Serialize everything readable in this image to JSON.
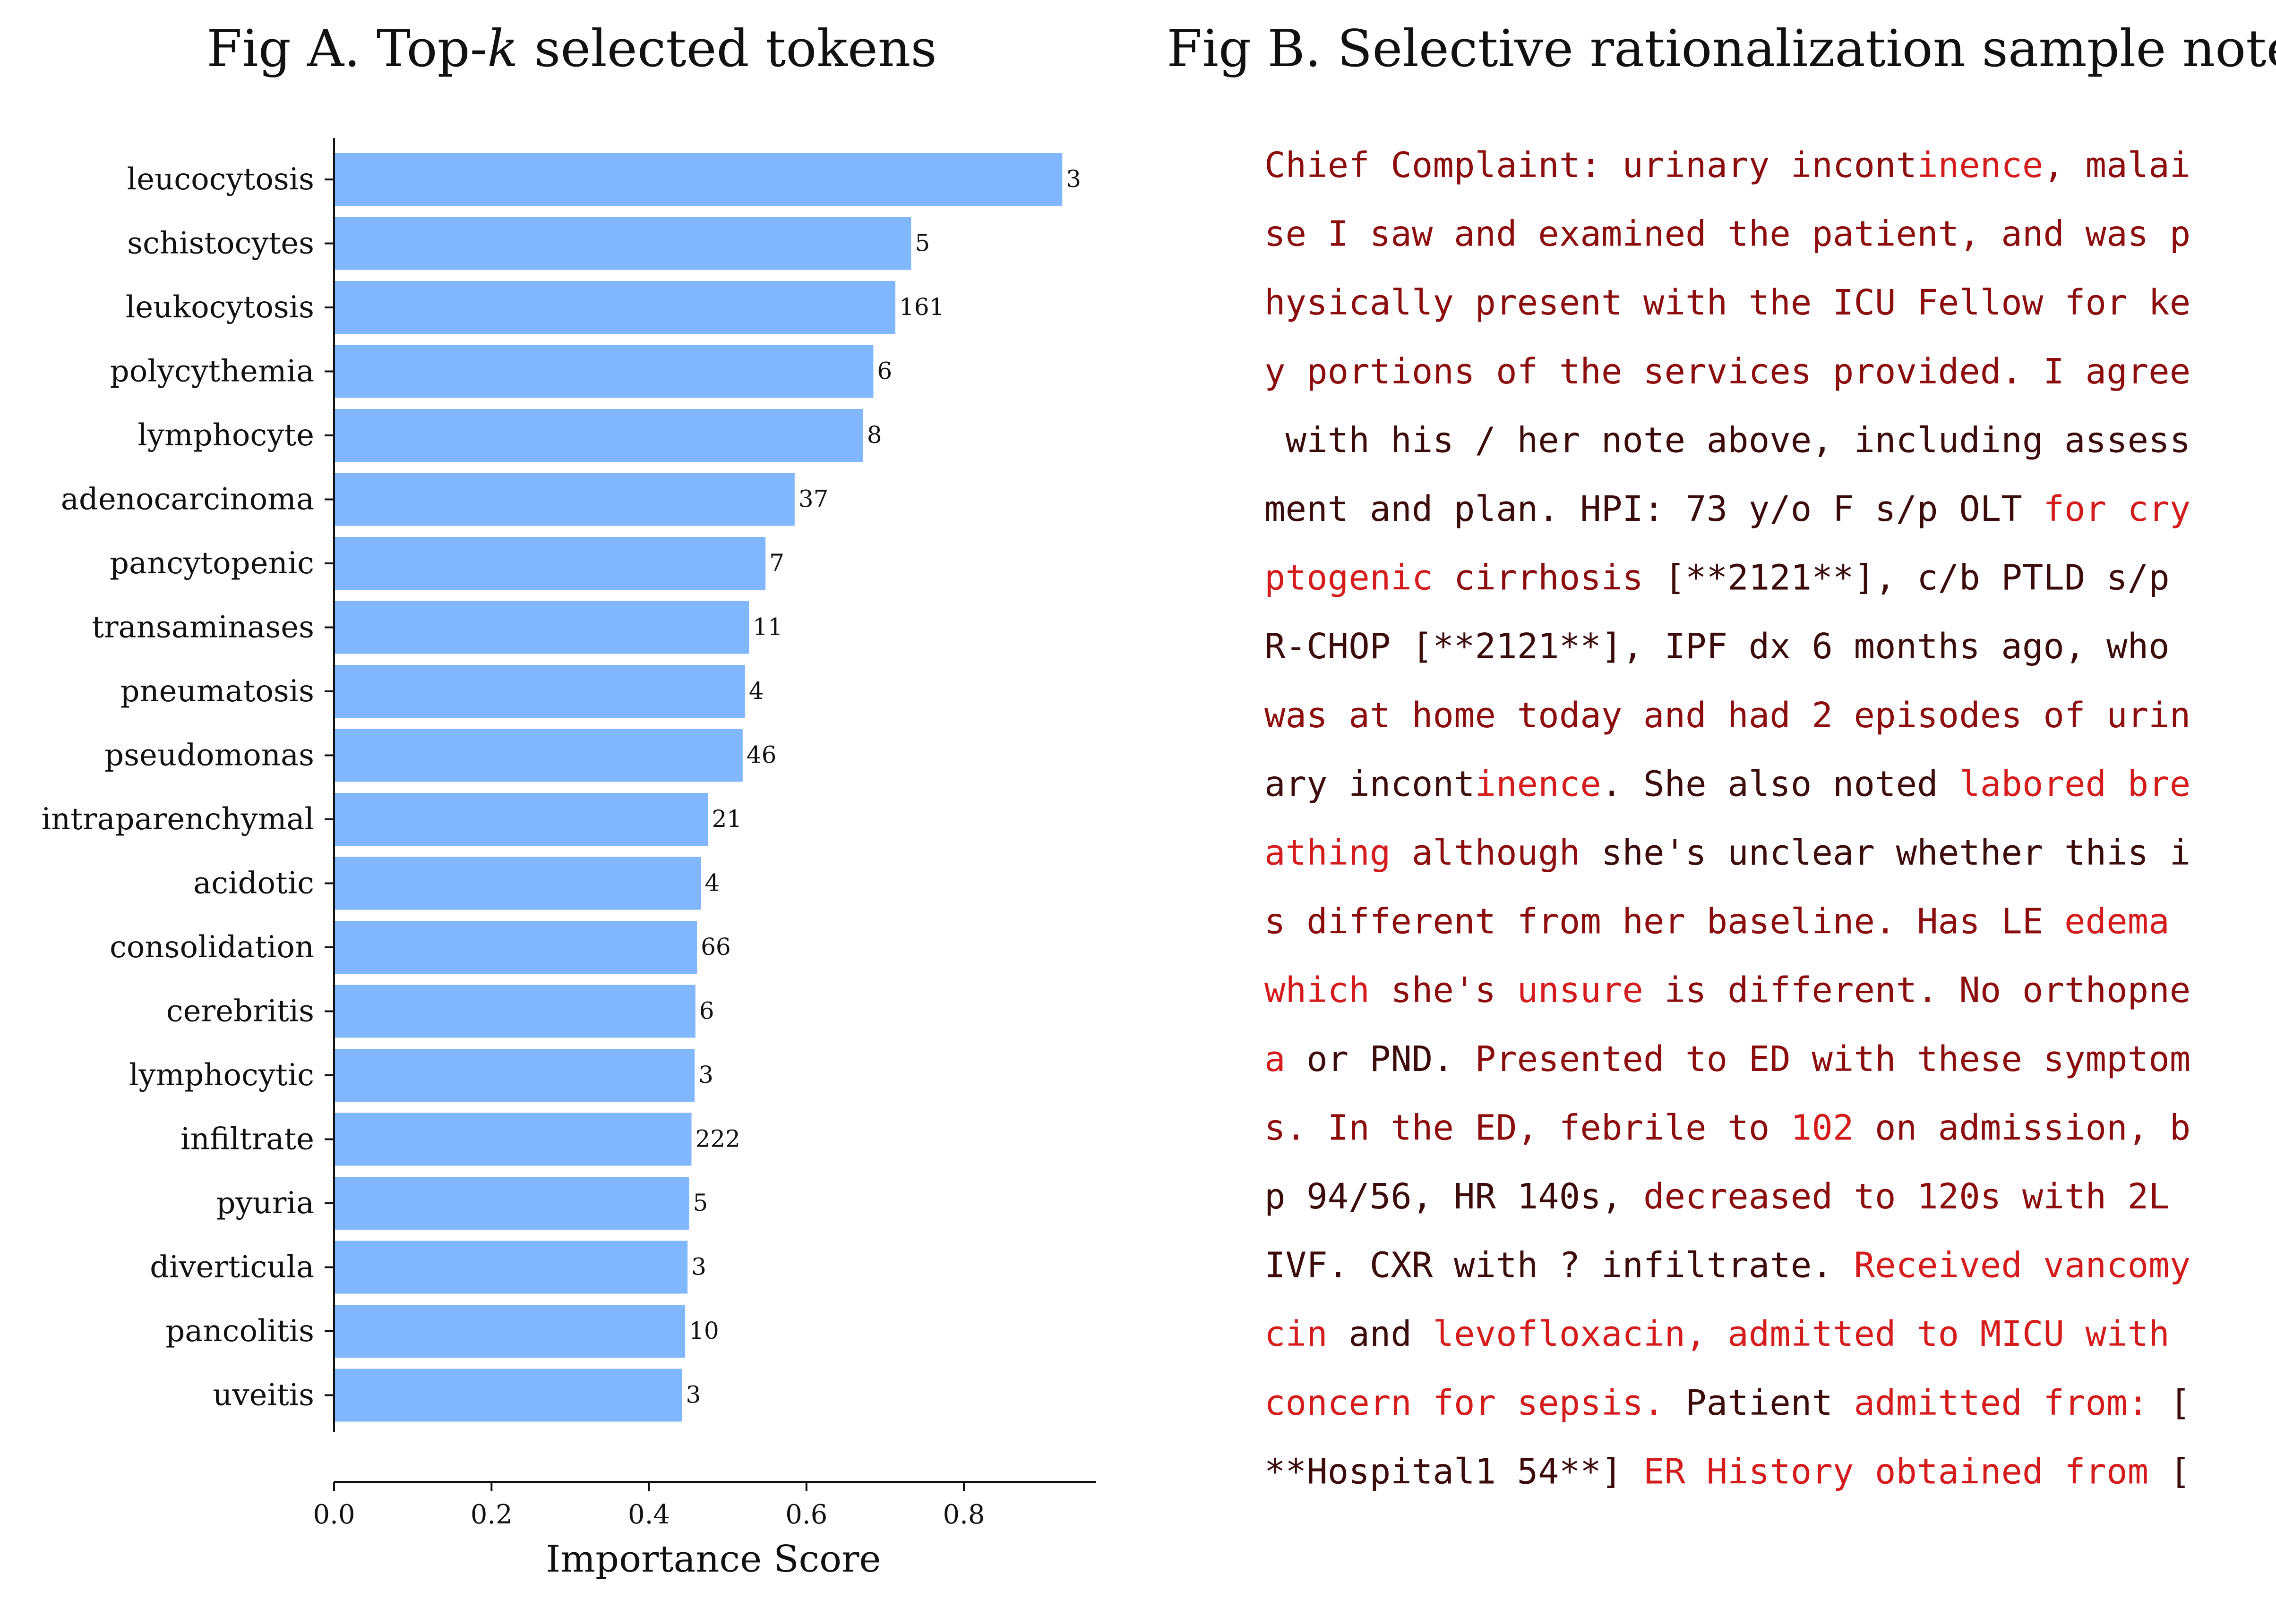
{
  "colors": {
    "bar": "#80b7fe",
    "axis": "#111111",
    "text": "#111111",
    "note_dark": "#3c0b0b",
    "note_mid": "#8c0d0d",
    "note_bright": "#d41c1c"
  },
  "chart_data": {
    "type": "bar",
    "orientation": "horizontal",
    "title_prefix": "Fig A. Top-",
    "title_var": "k",
    "title_suffix": " selected tokens",
    "xlabel": "Importance Score",
    "ylabel": "",
    "xlim": [
      0,
      0.97
    ],
    "xticks": [
      0.0,
      0.2,
      0.4,
      0.6,
      0.8
    ],
    "xtick_labels": [
      "0.0",
      "0.2",
      "0.4",
      "0.6",
      "0.8"
    ],
    "categories": [
      "leucocytosis",
      "schistocytes",
      "leukocytosis",
      "polycythemia",
      "lymphocyte",
      "adenocarcinoma",
      "pancytopenic",
      "transaminases",
      "pneumatosis",
      "pseudomonas",
      "intraparenchymal",
      "acidotic",
      "consolidation",
      "cerebritis",
      "lymphocytic",
      "infiltrate",
      "pyuria",
      "diverticula",
      "pancolitis",
      "uveitis"
    ],
    "values": [
      0.925,
      0.733,
      0.713,
      0.685,
      0.672,
      0.585,
      0.548,
      0.527,
      0.522,
      0.519,
      0.475,
      0.466,
      0.461,
      0.459,
      0.458,
      0.454,
      0.451,
      0.449,
      0.446,
      0.442
    ],
    "data_labels": [
      "3",
      "5",
      "161",
      "6",
      "8",
      "37",
      "7",
      "11",
      "4",
      "46",
      "21",
      "4",
      "66",
      "6",
      "3",
      "222",
      "5",
      "3",
      "10",
      "3"
    ]
  },
  "note_panel": {
    "title": "Fig B. Selective rationalization sample note",
    "lines": [
      [
        {
          "t": "Chief Complaint: urinary incont",
          "c": "mid"
        },
        {
          "t": "inence",
          "c": "bright"
        },
        {
          "t": ", malai",
          "c": "mid"
        }
      ],
      [
        {
          "t": "se I saw and examined the patient, and was p",
          "c": "mid"
        }
      ],
      [
        {
          "t": "hysically present with the ICU Fellow for ke",
          "c": "mid"
        }
      ],
      [
        {
          "t": "y portions of the services provided. I agree",
          "c": "mid"
        }
      ],
      [
        {
          "t": " with his / her note above, including assess",
          "c": "dark"
        }
      ],
      [
        {
          "t": "ment and plan. HPI: 73 y/o F s/p OLT ",
          "c": "dark"
        },
        {
          "t": "for cry",
          "c": "bright"
        }
      ],
      [
        {
          "t": "ptogenic ",
          "c": "bright"
        },
        {
          "t": "cirrhosis ",
          "c": "mid"
        },
        {
          "t": "[**2121**], c/b PTLD s/p",
          "c": "dark"
        }
      ],
      [
        {
          "t": "R-CHOP [**2121**], IPF dx 6 months ago, who",
          "c": "dark"
        }
      ],
      [
        {
          "t": "was at home today and had 2 episodes of urin",
          "c": "mid"
        }
      ],
      [
        {
          "t": "ary incont",
          "c": "dark"
        },
        {
          "t": "inence",
          "c": "bright"
        },
        {
          "t": ". She also noted ",
          "c": "dark"
        },
        {
          "t": "labored bre",
          "c": "bright"
        }
      ],
      [
        {
          "t": "athing ",
          "c": "bright"
        },
        {
          "t": "although ",
          "c": "mid"
        },
        {
          "t": "she's unclear whether this i",
          "c": "dark"
        }
      ],
      [
        {
          "t": "s different from her baseline. Has LE ",
          "c": "mid"
        },
        {
          "t": "edema",
          "c": "bright"
        }
      ],
      [
        {
          "t": "which ",
          "c": "bright"
        },
        {
          "t": "she's ",
          "c": "mid"
        },
        {
          "t": "unsure ",
          "c": "bright"
        },
        {
          "t": "is different. No orthopne",
          "c": "mid"
        }
      ],
      [
        {
          "t": "a ",
          "c": "bright"
        },
        {
          "t": "or PND. ",
          "c": "dark"
        },
        {
          "t": "Presented to ED with these symptom",
          "c": "mid"
        }
      ],
      [
        {
          "t": "s. In the ED, febrile to ",
          "c": "mid"
        },
        {
          "t": "102 ",
          "c": "bright"
        },
        {
          "t": "on admission, b",
          "c": "mid"
        }
      ],
      [
        {
          "t": "p 94/56, HR 140s, ",
          "c": "dark"
        },
        {
          "t": "decreased to 120s with 2L",
          "c": "mid"
        }
      ],
      [
        {
          "t": "IVF. CXR with ? infiltrate. ",
          "c": "dark"
        },
        {
          "t": "Received vancomy",
          "c": "bright"
        }
      ],
      [
        {
          "t": "cin ",
          "c": "bright"
        },
        {
          "t": "and ",
          "c": "dark"
        },
        {
          "t": "levofloxacin, admitted to MICU with",
          "c": "bright"
        }
      ],
      [
        {
          "t": "concern for sepsis. ",
          "c": "bright"
        },
        {
          "t": "Patient ",
          "c": "dark"
        },
        {
          "t": "admitted from: ",
          "c": "bright"
        },
        {
          "t": "[",
          "c": "dark"
        }
      ],
      [
        {
          "t": "**Hospital1 54**] ",
          "c": "dark"
        },
        {
          "t": "ER History obtained from ",
          "c": "bright"
        },
        {
          "t": "[",
          "c": "dark"
        }
      ]
    ]
  }
}
